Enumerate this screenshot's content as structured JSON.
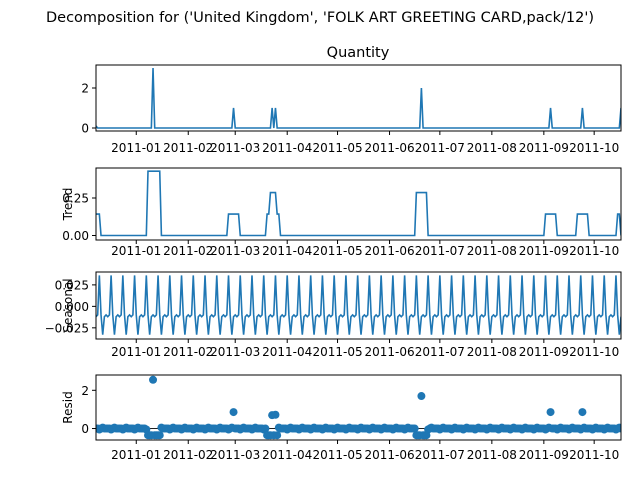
{
  "figure_title": "Decomposition for ('United Kingdom', 'FOLK ART GREETING CARD,pack/12')",
  "series_color": "#1f77b4",
  "x_tick_labels": [
    "2011-01",
    "2011-02",
    "2011-03",
    "2011-04",
    "2011-05",
    "2011-06",
    "2011-07",
    "2011-08",
    "2011-09",
    "2011-10"
  ],
  "chart_data": [
    {
      "type": "line",
      "title": "Quantity",
      "ylabel": "",
      "xlim": [
        "2010-12-08",
        "2011-10-17"
      ],
      "ylim": [
        -0.15,
        3.15
      ],
      "yticks": [
        0,
        2
      ],
      "x": [
        "2010-12-08",
        "2011-01-11",
        "2011-02-28",
        "2011-03-23",
        "2011-03-25",
        "2011-06-20",
        "2011-09-05",
        "2011-09-24",
        "2011-10-17"
      ],
      "values": [
        0.1,
        3,
        1,
        1,
        1,
        2,
        1,
        1,
        1
      ],
      "baseline": 0
    },
    {
      "type": "line",
      "ylabel": "Trend",
      "xlim": [
        "2010-12-08",
        "2011-10-17"
      ],
      "ylim": [
        -0.03,
        0.45
      ],
      "yticks": [
        0.0,
        0.25
      ],
      "yticklabels": [
        "0.00",
        "0.25"
      ],
      "steps": [
        [
          "2010-12-09",
          "2010-12-10",
          0.143
        ],
        [
          "2011-01-08",
          "2011-01-15",
          0.429
        ],
        [
          "2011-02-25",
          "2011-03-03",
          0.143
        ],
        [
          "2011-03-20",
          "2011-03-21",
          0.143
        ],
        [
          "2011-03-22",
          "2011-03-25",
          0.286
        ],
        [
          "2011-03-26",
          "2011-03-27",
          0.143
        ],
        [
          "2011-06-17",
          "2011-06-23",
          0.286
        ],
        [
          "2011-09-02",
          "2011-09-08",
          0.143
        ],
        [
          "2011-09-21",
          "2011-09-27",
          0.143
        ],
        [
          "2011-10-15",
          "2011-10-16",
          0.143
        ]
      ]
    },
    {
      "type": "line",
      "ylabel": "Seasonal",
      "xlim": [
        "2010-12-08",
        "2011-10-17"
      ],
      "ylim": [
        -0.038,
        0.04
      ],
      "yticks": [
        0.025,
        0.0,
        -0.025
      ],
      "yticklabels": [
        "0.025",
        "0.000",
        "−0.025"
      ],
      "period_days": 7,
      "pattern": [
        -0.012,
        -0.01,
        0.036,
        -0.01,
        -0.033,
        -0.012,
        -0.01
      ]
    },
    {
      "type": "scatter",
      "ylabel": "Resid",
      "xlim": [
        "2010-12-08",
        "2011-10-17"
      ],
      "ylim": [
        -0.6,
        2.8
      ],
      "yticks": [
        0,
        2
      ],
      "outliers": [
        [
          "2011-01-11",
          2.55
        ],
        [
          "2011-02-28",
          0.86
        ],
        [
          "2011-03-23",
          0.7
        ],
        [
          "2011-03-25",
          0.72
        ],
        [
          "2011-06-20",
          1.7
        ],
        [
          "2011-09-05",
          0.86
        ],
        [
          "2011-09-24",
          0.86
        ]
      ],
      "dip_days": [
        "2011-01-08",
        "2011-01-09",
        "2011-01-10",
        "2011-01-12",
        "2011-01-13",
        "2011-01-14",
        "2011-01-15",
        "2011-06-17",
        "2011-06-18",
        "2011-06-19",
        "2011-06-21",
        "2011-06-22",
        "2011-06-23",
        "2011-03-20",
        "2011-03-21",
        "2011-03-22",
        "2011-03-24",
        "2011-03-26"
      ]
    }
  ]
}
